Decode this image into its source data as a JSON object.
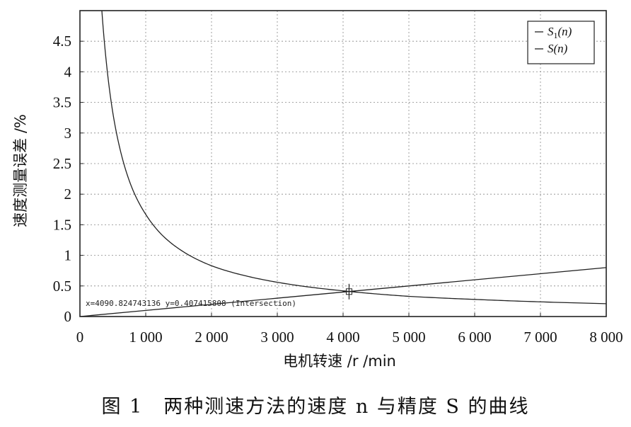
{
  "chart_data": {
    "type": "line",
    "xlabel": "电机转速 /r /min",
    "ylabel": "速度测量误差 /%",
    "xlim": [
      0,
      8000
    ],
    "ylim": [
      0,
      5
    ],
    "x_ticks": [
      0,
      1000,
      2000,
      3000,
      4000,
      5000,
      6000,
      7000,
      8000
    ],
    "x_tick_labels": [
      "0",
      "1 000",
      "2 000",
      "3 000",
      "4 000",
      "5 000",
      "6 000",
      "7 000",
      "8 000"
    ],
    "y_ticks": [
      0,
      0.5,
      1,
      1.5,
      2,
      2.5,
      3,
      3.5,
      4,
      4.5
    ],
    "y_tick_labels": [
      "0",
      "0.5",
      "1",
      "1.5",
      "2",
      "2.5",
      "3",
      "3.5",
      "4",
      "4.5"
    ],
    "grid": true,
    "legend_position": "top-right",
    "series": [
      {
        "name": "S1(n)",
        "name_main": "S",
        "name_sub": "1",
        "name_arg": "(n)",
        "x": [
          300,
          350,
          400,
          500,
          600,
          700,
          800,
          1000,
          1250,
          1500,
          2000,
          2500,
          3000,
          3500,
          4000,
          4500,
          5000,
          6000,
          7000,
          8000
        ],
        "y": [
          5.55,
          4.76,
          4.17,
          3.33,
          2.78,
          2.38,
          2.08,
          1.67,
          1.33,
          1.11,
          0.83,
          0.67,
          0.56,
          0.48,
          0.42,
          0.37,
          0.33,
          0.28,
          0.24,
          0.21
        ]
      },
      {
        "name": "S(n)",
        "name_main": "S",
        "name_sub": "",
        "name_arg": "(n)",
        "x": [
          0,
          1000,
          2000,
          3000,
          4000,
          5000,
          6000,
          7000,
          8000
        ],
        "y": [
          0,
          0.1,
          0.2,
          0.3,
          0.4,
          0.5,
          0.6,
          0.7,
          0.8
        ]
      }
    ],
    "annotation": {
      "text": "x=4090.824743136 y=0.407415808 (Intersection)",
      "x": 4090.824743136,
      "y": 0.407415808
    }
  },
  "caption": "图 1　两种测速方法的速度 n 与精度 S 的曲线"
}
